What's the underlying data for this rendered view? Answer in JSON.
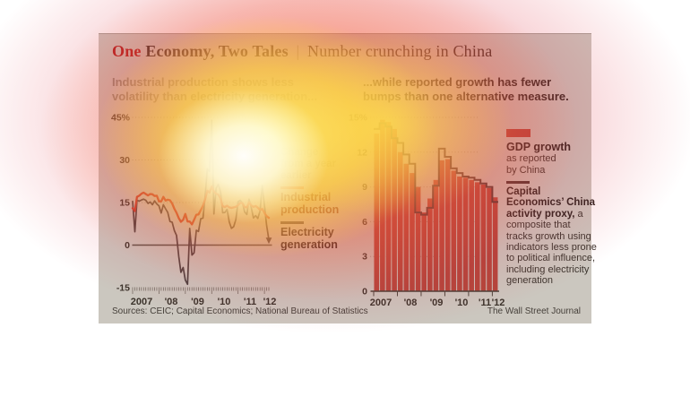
{
  "header": {
    "title_accent": "One",
    "title_main": "Economy, Two Tales",
    "separator": "|",
    "title_secondary": "Number crunching in China"
  },
  "left_section": {
    "subtitle": "Industrial production shows less\nvolatility than electricity generation...",
    "note": "Change\nfrom a year\nearlier",
    "legend_industrial": "Industrial\nproduction",
    "legend_electricity": "Electricity\ngeneration"
  },
  "right_section": {
    "subtitle": "...while reported growth has fewer\nbumps than one alternative measure.",
    "legend_gdp_title": "GDP growth",
    "legend_gdp_sub": "as reported\nby China",
    "legend_proxy_bold": "Capital Economics’ China activity proxy,",
    "legend_proxy_rest": " a composite that tracks growth using indicators less prone to political influence, including electricity generation"
  },
  "footer": {
    "sources": "Sources: CEIC; Capital Economics; National Bureau of Statistics",
    "credit": "The Wall Street Journal"
  },
  "colors": {
    "title_accent": "#ae1e20",
    "title_dark": "#3c322a",
    "title_sep": "#8d8679",
    "subtitle_left": "#8f897c",
    "subtitle_right": "#2f2a24",
    "note_gray": "#9a9281",
    "industrial_line": "#c33a2d",
    "industrial_label": "#6e2c22",
    "industrial_swatch": "#cf5428",
    "electricity_line": "#4b4240",
    "electricity_label": "#2b2521",
    "gdp_bar": "#b3463c",
    "proxy_line": "#4a3533",
    "axis_text": "#3a332b",
    "grid_dot": "#a09a8e",
    "zero_line": "#5a5248",
    "panel_bg": "#cbc7bf"
  },
  "chart_data": [
    {
      "type": "line",
      "title": "Industrial production shows less volatility than electricity generation...",
      "note": "Change from a year earlier",
      "x_unit": "month",
      "x_range": [
        "2007-01",
        "2012-03"
      ],
      "x_labels": [
        "2007",
        "'08",
        "'09",
        "'10",
        "'11",
        "'12"
      ],
      "ylim": [
        -15,
        45
      ],
      "y_ticks": [
        {
          "label": "45%",
          "value": 45
        },
        {
          "label": "30",
          "value": 30
        },
        {
          "label": "15",
          "value": 15
        },
        {
          "label": "0",
          "value": 0
        },
        {
          "label": "-15",
          "value": -15
        }
      ],
      "grid": "dotted",
      "series": [
        {
          "name": "Industrial production",
          "color": "#c33a2d",
          "values": [
            13.0,
            12.0,
            17.0,
            17.4,
            18.1,
            18.5,
            18.0,
            17.5,
            18.0,
            17.9,
            17.3,
            17.4,
            15.4,
            15.4,
            17.0,
            15.7,
            16.0,
            15.8,
            14.7,
            12.8,
            11.4,
            9.5,
            8.2,
            8.9,
            11.0,
            8.3,
            8.3,
            7.3,
            8.9,
            10.7,
            10.8,
            12.3,
            13.9,
            16.1,
            19.2,
            18.5,
            20.7,
            18.9,
            18.1,
            17.8,
            16.5,
            13.7,
            13.4,
            13.9,
            13.3,
            13.1,
            13.3,
            13.5,
            14.1,
            14.9,
            14.8,
            13.4,
            13.3,
            15.1,
            14.0,
            13.5,
            13.8,
            13.2,
            12.4,
            12.8,
            11.4,
            10.2,
            9.6
          ]
        },
        {
          "name": "Electricity generation",
          "color": "#4b4240",
          "end_marker": "arrow-down",
          "values": [
            15.4,
            4.7,
            15.8,
            15.5,
            15.9,
            16.2,
            15.8,
            14.7,
            15.2,
            14.2,
            15.6,
            14.5,
            13.8,
            11.3,
            14.2,
            12.8,
            11.5,
            8.3,
            8.1,
            5.1,
            3.4,
            -4.0,
            -9.6,
            -7.9,
            -12.3,
            -13.8,
            5.9,
            -3.5,
            -2.7,
            5.2,
            4.8,
            9.3,
            9.5,
            17.1,
            26.9,
            25.9,
            44.0,
            11.0,
            20.0,
            21.4,
            18.9,
            11.4,
            11.5,
            12.6,
            8.1,
            5.9,
            6.5,
            9.0,
            15.3,
            15.8,
            14.8,
            11.7,
            10.8,
            16.2,
            13.2,
            9.6,
            10.4,
            9.4,
            12.0,
            21.0,
            14.0,
            7.0,
            2.0
          ]
        }
      ]
    },
    {
      "type": "bar+step",
      "title": "...while reported growth has fewer bumps than one alternative measure.",
      "x_unit": "quarter",
      "x_range": [
        "2007Q1",
        "2012Q1"
      ],
      "x_labels": [
        "2007",
        "'08",
        "'09",
        "'10",
        "'11",
        "'12"
      ],
      "ylim": [
        0,
        15
      ],
      "y_ticks": [
        {
          "label": "15%",
          "value": 15
        },
        {
          "label": "12",
          "value": 12
        },
        {
          "label": "9",
          "value": 9
        },
        {
          "label": "6",
          "value": 6
        },
        {
          "label": "3",
          "value": 3
        },
        {
          "label": "0",
          "value": 0
        }
      ],
      "grid": "dotted",
      "series": [
        {
          "name": "GDP growth as reported by China",
          "style": "bar",
          "color": "#b3463c",
          "values": [
            13.6,
            14.8,
            14.6,
            14.0,
            12.0,
            11.0,
            10.2,
            9.0,
            6.8,
            8.0,
            9.6,
            11.3,
            11.4,
            10.4,
            9.9,
            9.8,
            9.6,
            9.4,
            9.2,
            8.9,
            8.1
          ]
        },
        {
          "name": "Capital Economics' China activity proxy",
          "style": "step-line",
          "color": "#4a3533",
          "values": [
            14.0,
            14.5,
            14.2,
            13.2,
            12.8,
            11.8,
            11.0,
            6.8,
            6.6,
            7.2,
            9.1,
            12.3,
            11.6,
            10.6,
            10.2,
            9.9,
            9.8,
            9.6,
            9.3,
            9.0,
            7.7
          ]
        }
      ]
    }
  ]
}
